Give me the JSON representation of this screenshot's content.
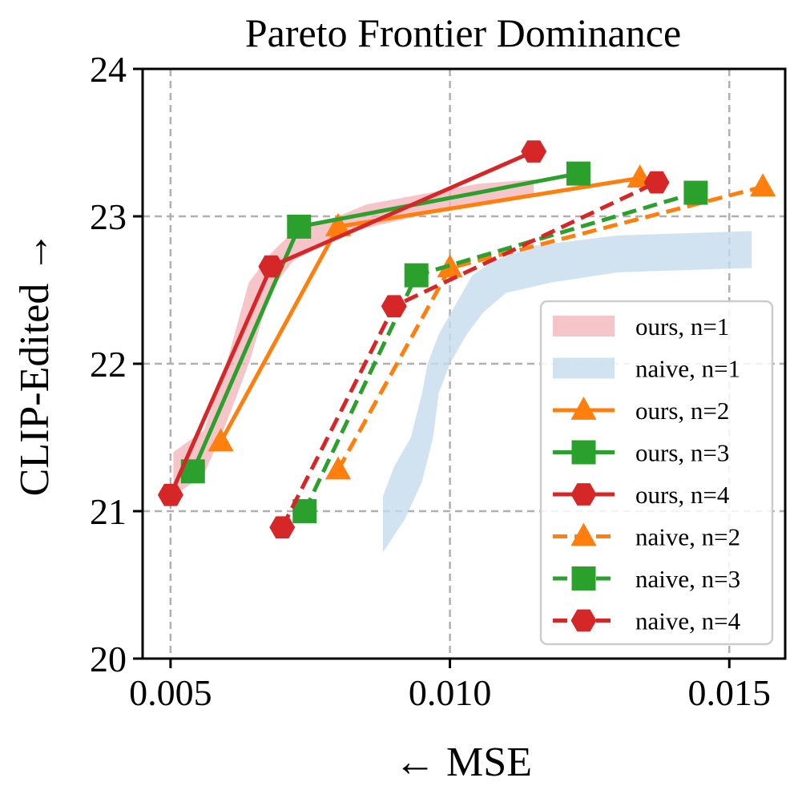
{
  "chart_data": {
    "type": "line",
    "title": "Pareto Frontier Dominance",
    "xlabel": "← MSE",
    "ylabel": "CLIP-Edited →",
    "xlim": [
      0.0045,
      0.016
    ],
    "ylim": [
      20,
      24
    ],
    "xticks": [
      0.005,
      0.01,
      0.015
    ],
    "xtick_labels": [
      "0.005",
      "0.010",
      "0.015"
    ],
    "yticks": [
      20,
      21,
      22,
      23,
      24
    ],
    "ytick_labels": [
      "20",
      "21",
      "22",
      "23",
      "24"
    ],
    "grid": true,
    "legend_position": "lower-right",
    "bands": [
      {
        "name": "ours, n=1",
        "color": "#f4b6bb",
        "upper": [
          [
            0.00505,
            21.4
          ],
          [
            0.0056,
            21.55
          ],
          [
            0.006,
            22.0
          ],
          [
            0.0064,
            22.55
          ],
          [
            0.0068,
            22.75
          ],
          [
            0.0072,
            22.9
          ],
          [
            0.008,
            23.0
          ],
          [
            0.0085,
            23.08
          ],
          [
            0.0095,
            23.15
          ],
          [
            0.0105,
            23.22
          ],
          [
            0.0115,
            23.25
          ]
        ],
        "lower": [
          [
            0.0115,
            23.13
          ],
          [
            0.0105,
            23.08
          ],
          [
            0.0095,
            23.01
          ],
          [
            0.0085,
            22.92
          ],
          [
            0.008,
            22.86
          ],
          [
            0.0072,
            22.7
          ],
          [
            0.0068,
            22.5
          ],
          [
            0.0064,
            22.0
          ],
          [
            0.006,
            21.6
          ],
          [
            0.0056,
            21.25
          ],
          [
            0.00505,
            21.1
          ]
        ]
      },
      {
        "name": "naive, n=1",
        "color": "#c6dbec",
        "upper": [
          [
            0.0088,
            21.1
          ],
          [
            0.009,
            21.3
          ],
          [
            0.0093,
            21.5
          ],
          [
            0.0095,
            21.8
          ],
          [
            0.0096,
            22.0
          ],
          [
            0.0098,
            22.2
          ],
          [
            0.0101,
            22.4
          ],
          [
            0.0104,
            22.6
          ],
          [
            0.0108,
            22.7
          ],
          [
            0.0115,
            22.8
          ],
          [
            0.013,
            22.87
          ],
          [
            0.0154,
            22.9
          ]
        ],
        "lower": [
          [
            0.0154,
            22.65
          ],
          [
            0.013,
            22.62
          ],
          [
            0.0118,
            22.55
          ],
          [
            0.011,
            22.48
          ],
          [
            0.0106,
            22.35
          ],
          [
            0.0103,
            22.2
          ],
          [
            0.01,
            22.0
          ],
          [
            0.0098,
            21.8
          ],
          [
            0.0097,
            21.5
          ],
          [
            0.0095,
            21.2
          ],
          [
            0.0092,
            20.95
          ],
          [
            0.0088,
            20.72
          ]
        ]
      }
    ],
    "series": [
      {
        "name": "ours, n=2",
        "color": "#ff7f0e",
        "dash": false,
        "marker": "triangle",
        "points": [
          [
            0.0059,
            21.47
          ],
          [
            0.008,
            22.93
          ],
          [
            0.0134,
            23.26
          ]
        ]
      },
      {
        "name": "ours, n=3",
        "color": "#2ca02c",
        "dash": false,
        "marker": "square",
        "points": [
          [
            0.0054,
            21.27
          ],
          [
            0.0073,
            22.93
          ],
          [
            0.0123,
            23.29
          ]
        ]
      },
      {
        "name": "ours, n=4",
        "color": "#d62728",
        "dash": false,
        "marker": "hexagon",
        "points": [
          [
            0.005,
            21.11
          ],
          [
            0.0068,
            22.66
          ],
          [
            0.0115,
            23.44
          ]
        ]
      },
      {
        "name": "naive, n=2",
        "color": "#ff7f0e",
        "dash": true,
        "marker": "triangle",
        "points": [
          [
            0.008,
            21.28
          ],
          [
            0.01,
            22.65
          ],
          [
            0.0156,
            23.2
          ]
        ]
      },
      {
        "name": "naive, n=3",
        "color": "#2ca02c",
        "dash": true,
        "marker": "square",
        "points": [
          [
            0.0074,
            21.0
          ],
          [
            0.0094,
            22.6
          ],
          [
            0.0144,
            23.16
          ]
        ]
      },
      {
        "name": "naive, n=4",
        "color": "#d62728",
        "dash": true,
        "marker": "hexagon",
        "points": [
          [
            0.007,
            20.89
          ],
          [
            0.009,
            22.39
          ],
          [
            0.0137,
            23.23
          ]
        ]
      }
    ]
  }
}
